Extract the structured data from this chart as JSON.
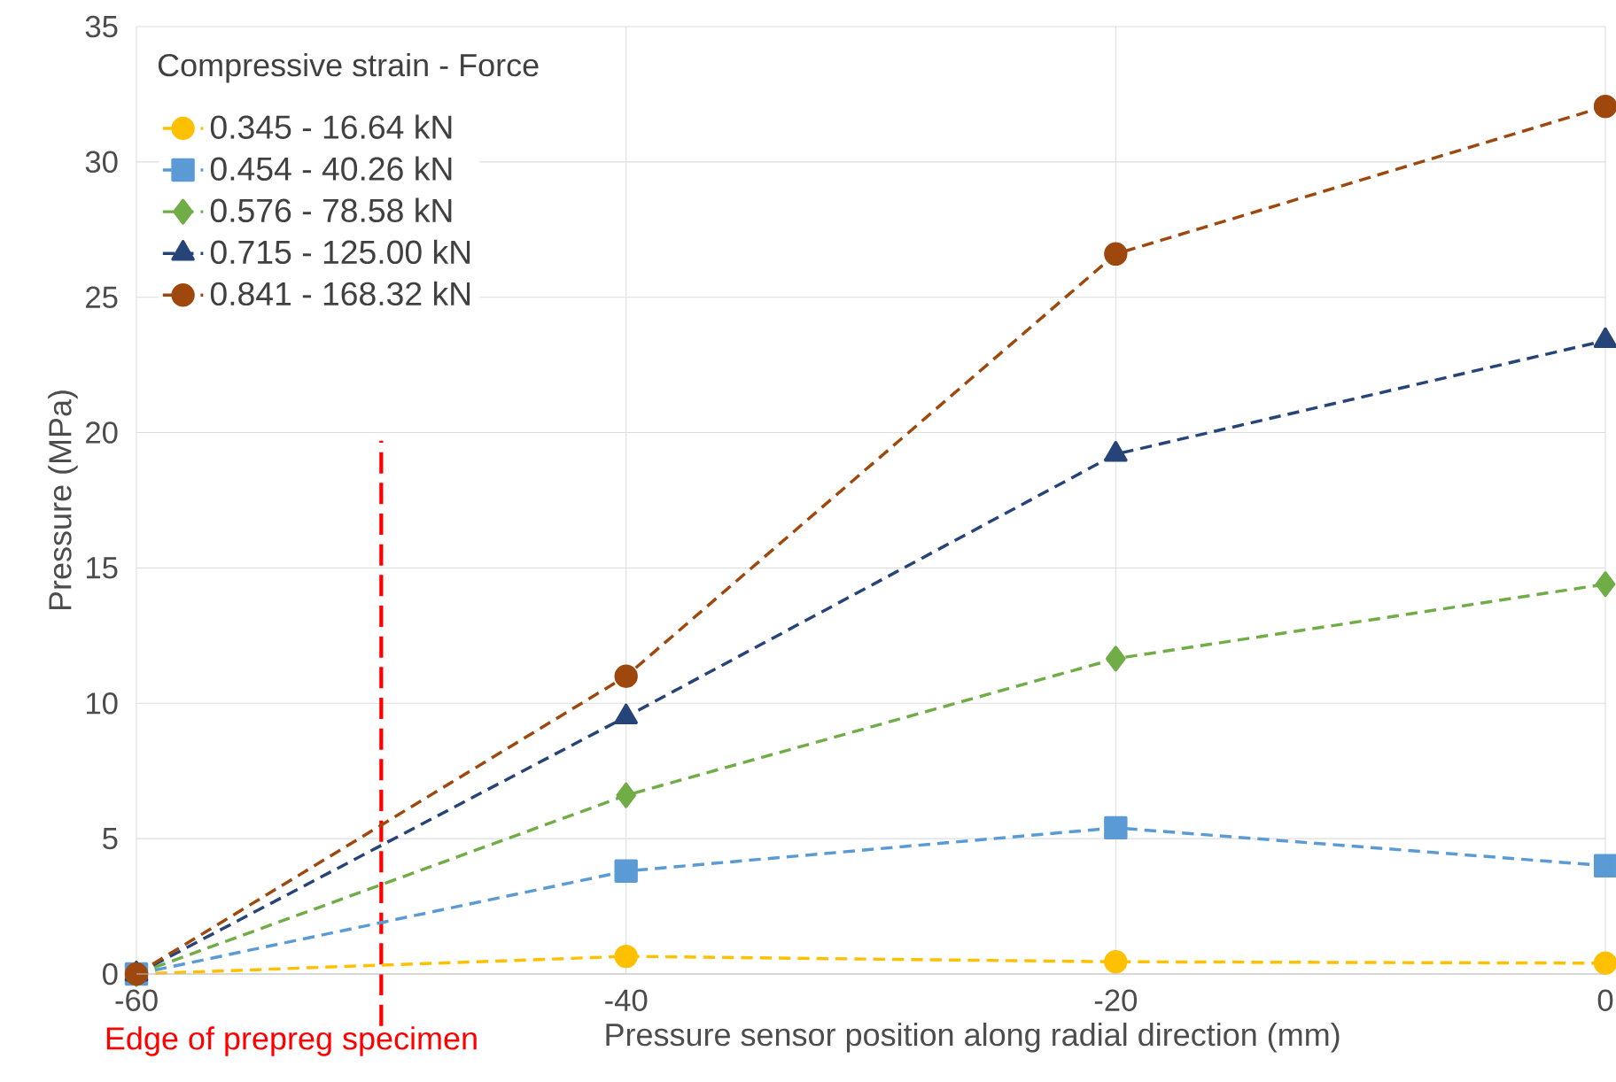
{
  "chart_data": {
    "type": "line",
    "xlabel": "Pressure sensor position along radial direction (mm)",
    "ylabel": "Pressure (MPa)",
    "legend_title": "Compressive strain - Force",
    "x": [
      -60,
      -40,
      -20,
      0
    ],
    "series": [
      {
        "name": "0.345 - 16.64 kN",
        "color": "#ffc000",
        "marker": "circle",
        "values": [
          0,
          0.65,
          0.45,
          0.4
        ]
      },
      {
        "name": "0.454 - 40.26 kN",
        "color": "#5b9bd5",
        "marker": "square",
        "values": [
          0,
          3.8,
          5.4,
          4.0
        ]
      },
      {
        "name": "0.576 - 78.58 kN",
        "color": "#70ad47",
        "marker": "diamond",
        "values": [
          0,
          6.6,
          11.65,
          14.4
        ]
      },
      {
        "name": "0.715 - 125.00 kN",
        "color": "#264478",
        "marker": "triangle",
        "values": [
          0,
          9.5,
          19.2,
          23.4
        ]
      },
      {
        "name": "0.841 - 168.32 kN",
        "color": "#9e480e",
        "marker": "circle",
        "values": [
          0,
          11.0,
          26.6,
          32.05
        ]
      }
    ],
    "xlim": [
      -60,
      0
    ],
    "ylim": [
      0,
      35
    ],
    "xticks": [
      -60,
      -40,
      -20,
      0
    ],
    "yticks": [
      0,
      5,
      10,
      15,
      20,
      25,
      30,
      35
    ],
    "ref_lines": [
      {
        "axis": "x",
        "value": -50,
        "label": "Edge of prepreg specimen",
        "color": "#ff0000",
        "line_style": "dashed"
      }
    ],
    "grid": true,
    "legend": "top left",
    "line_style": "dashed"
  }
}
